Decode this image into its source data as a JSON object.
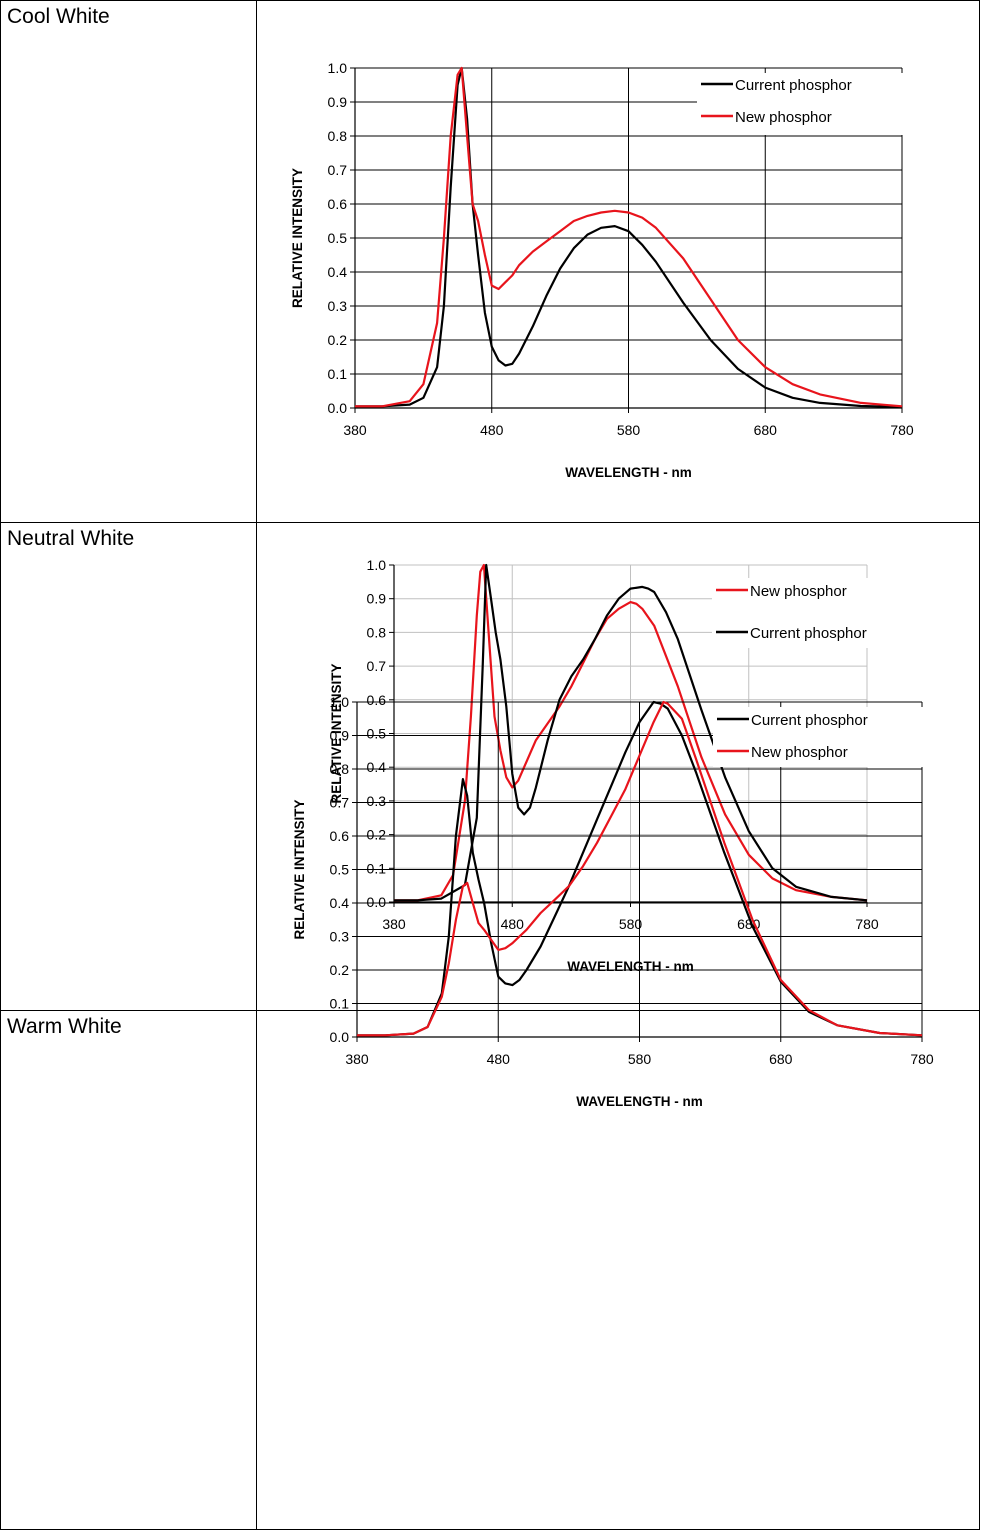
{
  "rows": [
    {
      "label": "Cool White"
    },
    {
      "label": "Neutral White"
    },
    {
      "label": "Warm White"
    }
  ],
  "chart_data": [
    {
      "type": "line",
      "title": "",
      "xlabel": "WAVELENGTH - nm",
      "ylabel": "RELATIVE INTENSITY",
      "xlim": [
        380,
        780
      ],
      "ylim": [
        0.0,
        1.0
      ],
      "xticks": [
        "380",
        "480",
        "580",
        "680",
        "780"
      ],
      "yticks": [
        "0.0",
        "0.1",
        "0.2",
        "0.3",
        "0.4",
        "0.5",
        "0.6",
        "0.7",
        "0.8",
        "0.9",
        "1.0"
      ],
      "grid": "major",
      "legend": "top-right",
      "series": [
        {
          "name": "Current phosphor",
          "color": "#000000",
          "x": [
            380,
            400,
            420,
            430,
            440,
            445,
            450,
            455,
            458,
            462,
            466,
            470,
            475,
            480,
            485,
            490,
            495,
            500,
            510,
            520,
            530,
            540,
            550,
            560,
            570,
            580,
            590,
            600,
            620,
            640,
            660,
            680,
            700,
            720,
            750,
            780
          ],
          "y": [
            0.005,
            0.005,
            0.01,
            0.03,
            0.12,
            0.3,
            0.65,
            0.95,
            1.0,
            0.85,
            0.6,
            0.45,
            0.28,
            0.18,
            0.14,
            0.125,
            0.13,
            0.16,
            0.24,
            0.33,
            0.41,
            0.47,
            0.51,
            0.53,
            0.535,
            0.52,
            0.48,
            0.43,
            0.31,
            0.2,
            0.115,
            0.06,
            0.03,
            0.015,
            0.006,
            0.003
          ]
        },
        {
          "name": "New phosphor",
          "color": "#e8141c",
          "x": [
            380,
            400,
            420,
            430,
            440,
            445,
            450,
            455,
            458,
            462,
            466,
            470,
            475,
            480,
            485,
            490,
            495,
            500,
            510,
            520,
            530,
            540,
            550,
            560,
            570,
            580,
            590,
            600,
            620,
            640,
            660,
            680,
            700,
            720,
            750,
            780
          ],
          "y": [
            0.005,
            0.005,
            0.02,
            0.07,
            0.25,
            0.5,
            0.8,
            0.98,
            1.0,
            0.8,
            0.6,
            0.55,
            0.45,
            0.36,
            0.35,
            0.37,
            0.39,
            0.42,
            0.46,
            0.49,
            0.52,
            0.55,
            0.565,
            0.575,
            0.58,
            0.575,
            0.56,
            0.53,
            0.44,
            0.32,
            0.2,
            0.12,
            0.07,
            0.04,
            0.015,
            0.005
          ]
        }
      ]
    },
    {
      "type": "line",
      "title": "",
      "xlabel": "WAVELENGTH - nm",
      "ylabel": "RELATIVE INTENSITY",
      "xlim": [
        380,
        780
      ],
      "ylim": [
        0.0,
        1.0
      ],
      "xticks": [
        "380",
        "480",
        "580",
        "680",
        "780"
      ],
      "yticks": [
        "0.0",
        "0.1",
        "0.2",
        "0.3",
        "0.4",
        "0.5",
        "0.6",
        "0.7",
        "0.8",
        "0.9",
        "1.0"
      ],
      "grid": "major",
      "legend": "top-right",
      "series": [
        {
          "name": "New phosphor",
          "color": "#e8141c",
          "x": [
            380,
            400,
            420,
            430,
            440,
            445,
            450,
            453,
            456,
            460,
            465,
            470,
            475,
            480,
            485,
            490,
            495,
            500,
            510,
            520,
            530,
            540,
            550,
            560,
            570,
            580,
            585,
            590,
            600,
            620,
            640,
            660,
            680,
            700,
            720,
            750,
            780
          ],
          "y": [
            0.005,
            0.005,
            0.02,
            0.08,
            0.3,
            0.55,
            0.85,
            0.98,
            1.0,
            0.8,
            0.55,
            0.45,
            0.37,
            0.34,
            0.36,
            0.4,
            0.44,
            0.48,
            0.53,
            0.58,
            0.64,
            0.71,
            0.78,
            0.84,
            0.87,
            0.89,
            0.885,
            0.87,
            0.82,
            0.64,
            0.43,
            0.26,
            0.14,
            0.07,
            0.035,
            0.015,
            0.005
          ]
        },
        {
          "name": "Current phosphor",
          "color": "#000000",
          "x": [
            380,
            400,
            420,
            440,
            450,
            455,
            458,
            462,
            466,
            470,
            475,
            480,
            485,
            490,
            495,
            500,
            510,
            520,
            530,
            540,
            550,
            560,
            570,
            580,
            590,
            595,
            600,
            610,
            620,
            640,
            660,
            680,
            700,
            720,
            750,
            780
          ],
          "y": [
            0.005,
            0.005,
            0.01,
            0.05,
            0.25,
            0.7,
            1.0,
            0.9,
            0.8,
            0.72,
            0.58,
            0.38,
            0.28,
            0.26,
            0.28,
            0.34,
            0.48,
            0.6,
            0.67,
            0.72,
            0.78,
            0.85,
            0.9,
            0.93,
            0.935,
            0.93,
            0.92,
            0.86,
            0.78,
            0.57,
            0.37,
            0.21,
            0.1,
            0.045,
            0.015,
            0.005
          ]
        }
      ]
    },
    {
      "type": "line",
      "title": "",
      "xlabel": "WAVELENGTH - nm",
      "ylabel": "RELATIVE INTENSITY",
      "xlim": [
        380,
        780
      ],
      "ylim": [
        0.0,
        1.0
      ],
      "xticks": [
        "380",
        "480",
        "580",
        "680",
        "780"
      ],
      "yticks": [
        "0.0",
        "0.1",
        "0.2",
        "0.3",
        "0.4",
        "0.5",
        "0.6",
        "0.7",
        "0.8",
        "0.9",
        "1.0"
      ],
      "grid": "major",
      "legend": "top-right",
      "series": [
        {
          "name": "Current phosphor",
          "color": "#000000",
          "x": [
            380,
            400,
            420,
            430,
            440,
            445,
            450,
            455,
            458,
            462,
            466,
            470,
            475,
            480,
            485,
            490,
            495,
            500,
            510,
            520,
            530,
            540,
            550,
            560,
            570,
            580,
            590,
            595,
            600,
            610,
            620,
            640,
            660,
            680,
            700,
            720,
            750,
            780
          ],
          "y": [
            0.005,
            0.005,
            0.01,
            0.03,
            0.13,
            0.3,
            0.6,
            0.77,
            0.72,
            0.55,
            0.47,
            0.4,
            0.28,
            0.18,
            0.16,
            0.155,
            0.17,
            0.2,
            0.27,
            0.36,
            0.45,
            0.55,
            0.65,
            0.75,
            0.85,
            0.94,
            1.0,
            0.995,
            0.98,
            0.9,
            0.79,
            0.55,
            0.33,
            0.165,
            0.075,
            0.035,
            0.012,
            0.005
          ]
        },
        {
          "name": "New phosphor",
          "color": "#e8141c",
          "x": [
            380,
            400,
            420,
            430,
            440,
            445,
            450,
            455,
            458,
            462,
            466,
            470,
            475,
            480,
            485,
            490,
            495,
            500,
            510,
            520,
            530,
            540,
            550,
            560,
            570,
            580,
            590,
            597,
            600,
            610,
            620,
            640,
            660,
            680,
            700,
            720,
            750,
            780
          ],
          "y": [
            0.005,
            0.005,
            0.01,
            0.03,
            0.12,
            0.22,
            0.35,
            0.45,
            0.46,
            0.4,
            0.34,
            0.32,
            0.29,
            0.26,
            0.265,
            0.28,
            0.3,
            0.32,
            0.37,
            0.41,
            0.45,
            0.51,
            0.58,
            0.66,
            0.74,
            0.84,
            0.94,
            1.0,
            0.995,
            0.95,
            0.83,
            0.58,
            0.35,
            0.17,
            0.08,
            0.035,
            0.012,
            0.005
          ]
        }
      ]
    }
  ]
}
